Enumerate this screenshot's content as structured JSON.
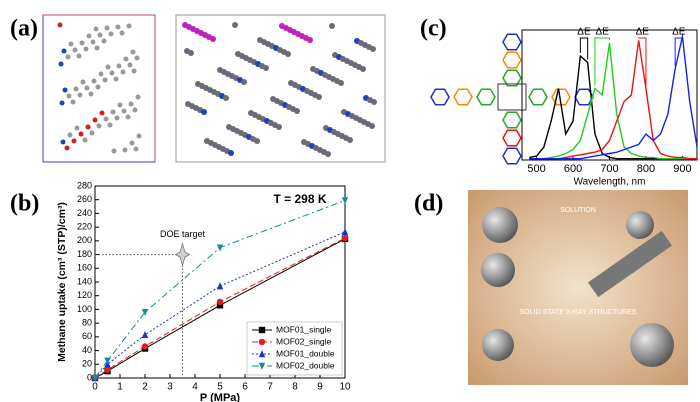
{
  "panels": [
    "(a)",
    "(b)",
    "(c)",
    "(d)"
  ],
  "image_text": [
    "SOLUTION",
    "SOLID STATE X-RAY STRUCTURES"
  ],
  "chart_data": [
    {
      "type": "line",
      "inner_title": "T = 298 K",
      "xlabel": "P (MPa)",
      "ylabel": "Methane uptake (cm³ (STP)/cm³)",
      "x": [
        0,
        0.5,
        2,
        5,
        10
      ],
      "series": [
        {
          "name": "MOF01_single",
          "color": "#000000",
          "marker": "square",
          "dash": "solid",
          "values": [
            0,
            10,
            43,
            106,
            203
          ]
        },
        {
          "name": "MOF02_single",
          "color": "#e02020",
          "marker": "circle",
          "dash": "dashed",
          "values": [
            0,
            12,
            46,
            111,
            204
          ]
        },
        {
          "name": "MOF01_double",
          "color": "#2030d0",
          "marker": "triangle-up",
          "dash": "dotted",
          "values": [
            0,
            20,
            63,
            134,
            213
          ]
        },
        {
          "name": "MOF02_double",
          "color": "#10908a",
          "marker": "triangle-down",
          "dash": "dashdot",
          "values": [
            0,
            25,
            96,
            190,
            259
          ]
        }
      ],
      "target": {
        "label": "DOE target",
        "x": 3.5,
        "y": 180
      },
      "xlim": [
        0,
        10
      ],
      "xticks": [
        0,
        1,
        2,
        3,
        4,
        5,
        6,
        7,
        8,
        9,
        10
      ],
      "ylim": [
        0,
        280
      ],
      "yticks": [
        0,
        20,
        40,
        60,
        80,
        100,
        120,
        140,
        160,
        180,
        200,
        220,
        240,
        260,
        280
      ],
      "legend": "lower-right"
    },
    {
      "type": "line",
      "xlabel": "Wavelength, nm",
      "annotations": [
        "ΔE",
        "ΔE",
        "ΔE",
        "ΔE"
      ],
      "x": [
        480,
        500,
        520,
        540,
        560,
        580,
        600,
        620,
        640,
        660,
        680,
        700,
        720,
        740,
        760,
        780,
        800,
        820,
        840,
        860,
        880,
        900,
        920,
        940
      ],
      "series": [
        {
          "color": "#000000",
          "values": [
            0.02,
            0.03,
            0.1,
            0.3,
            0.55,
            0.2,
            0.3,
            0.8,
            0.75,
            0.2,
            0.05,
            0.02,
            0.01,
            0.01,
            0.01,
            0.01,
            0.01,
            0.01,
            0.01,
            0.01,
            0.01,
            0.01,
            0.01,
            0.01
          ]
        },
        {
          "color": "#22cc22",
          "values": [
            0.01,
            0.01,
            0.01,
            0.02,
            0.03,
            0.05,
            0.08,
            0.15,
            0.35,
            0.55,
            0.5,
            0.9,
            0.35,
            0.1,
            0.05,
            0.03,
            0.02,
            0.02,
            0.01,
            0.01,
            0.01,
            0.01,
            0.01,
            0.01
          ]
        },
        {
          "color": "#ee1111",
          "values": [
            0.01,
            0.01,
            0.01,
            0.01,
            0.01,
            0.02,
            0.03,
            0.04,
            0.05,
            0.06,
            0.08,
            0.15,
            0.3,
            0.45,
            0.5,
            0.92,
            0.55,
            0.15,
            0.05,
            0.03,
            0.02,
            0.02,
            0.01,
            0.01
          ]
        },
        {
          "color": "#1122ee",
          "values": [
            0.01,
            0.01,
            0.01,
            0.01,
            0.01,
            0.01,
            0.01,
            0.01,
            0.02,
            0.03,
            0.04,
            0.05,
            0.06,
            0.08,
            0.1,
            0.12,
            0.2,
            0.15,
            0.2,
            0.35,
            0.7,
            0.95,
            0.45,
            0.1
          ]
        }
      ],
      "xlim": [
        460,
        940
      ],
      "xticks": [
        500,
        600,
        700,
        800,
        900
      ],
      "ylim": [
        0,
        1
      ]
    }
  ]
}
